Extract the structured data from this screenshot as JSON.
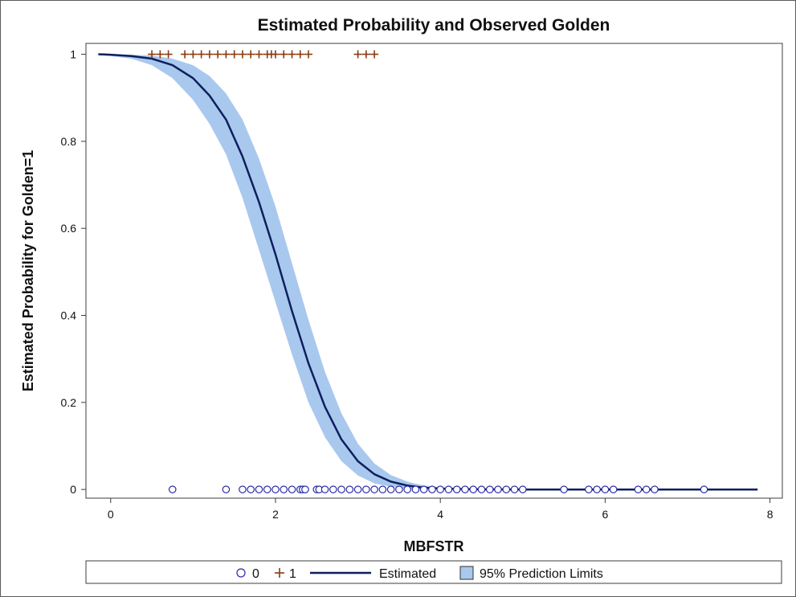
{
  "chart_data": {
    "type": "line",
    "title": "Estimated Probability and Observed  Golden",
    "xlabel": "MBFSTR",
    "ylabel": "Estimated Probability for Golden=1",
    "xlim": [
      -0.3,
      8.15
    ],
    "ylim": [
      -0.02,
      1.025
    ],
    "xticks": [
      0,
      2,
      4,
      6,
      8
    ],
    "yticks": [
      0,
      0.2,
      0.4,
      0.6,
      0.8,
      1
    ],
    "xtick_labels": [
      "0",
      "2",
      "4",
      "6",
      "8"
    ],
    "ytick_labels": [
      "0",
      "0.2",
      "0.4",
      "0.6",
      "0.8",
      "1"
    ],
    "grid": false,
    "colors": {
      "estimated_line": "#0d1f5c",
      "band_fill": "#a9c8ee",
      "band_edge": "#6f9fd8",
      "observed_0": "#2a2aa8",
      "observed_1": "#8b3a0e",
      "frame": "#3c3c3c"
    },
    "estimated": {
      "name": "Estimated",
      "x": [
        -0.15,
        0.0,
        0.25,
        0.5,
        0.75,
        1.0,
        1.2,
        1.4,
        1.6,
        1.8,
        2.0,
        2.2,
        2.4,
        2.6,
        2.8,
        3.0,
        3.2,
        3.4,
        3.6,
        3.8,
        4.0,
        4.5,
        5.0,
        6.0,
        7.0,
        7.85
      ],
      "y": [
        1.0,
        0.999,
        0.996,
        0.99,
        0.975,
        0.945,
        0.905,
        0.85,
        0.765,
        0.66,
        0.54,
        0.41,
        0.29,
        0.19,
        0.115,
        0.065,
        0.035,
        0.018,
        0.009,
        0.004,
        0.002,
        0.0003,
        0.0,
        0.0,
        0.0,
        0.0
      ]
    },
    "band": {
      "name": "95% Prediction Limits",
      "lower": [
        0.998,
        0.996,
        0.99,
        0.975,
        0.945,
        0.895,
        0.84,
        0.77,
        0.67,
        0.55,
        0.43,
        0.31,
        0.2,
        0.12,
        0.065,
        0.032,
        0.014,
        0.006,
        0.002,
        0.0008,
        0.0003,
        0.0,
        0.0,
        0.0,
        0.0,
        0.0
      ],
      "upper": [
        1.0,
        1.0,
        0.999,
        0.997,
        0.99,
        0.975,
        0.95,
        0.91,
        0.85,
        0.76,
        0.65,
        0.52,
        0.39,
        0.27,
        0.175,
        0.105,
        0.06,
        0.033,
        0.018,
        0.009,
        0.005,
        0.001,
        0.0002,
        0.0,
        0.0,
        0.0
      ]
    },
    "observed_1": {
      "label": "+",
      "name": "1",
      "y": 1,
      "x": [
        0.5,
        0.6,
        0.7,
        0.9,
        1.0,
        1.1,
        1.2,
        1.3,
        1.4,
        1.5,
        1.6,
        1.7,
        1.8,
        1.9,
        1.95,
        2.0,
        2.1,
        2.2,
        2.3,
        2.4,
        3.0,
        3.1,
        3.2
      ]
    },
    "observed_0": {
      "label": "o",
      "name": "0",
      "y": 0,
      "x": [
        0.75,
        1.4,
        1.6,
        1.7,
        1.8,
        1.9,
        2.0,
        2.1,
        2.2,
        2.3,
        2.33,
        2.36,
        2.5,
        2.53,
        2.6,
        2.7,
        2.8,
        2.9,
        3.0,
        3.1,
        3.2,
        3.3,
        3.4,
        3.5,
        3.6,
        3.7,
        3.8,
        3.9,
        4.0,
        4.1,
        4.2,
        4.3,
        4.4,
        4.5,
        4.6,
        4.7,
        4.8,
        4.9,
        5.0,
        5.5,
        5.8,
        5.9,
        6.0,
        6.1,
        6.4,
        6.5,
        6.6,
        7.2
      ]
    },
    "legend": {
      "position": "bottom",
      "items": [
        "0",
        "1",
        "Estimated",
        "95% Prediction Limits"
      ]
    }
  }
}
